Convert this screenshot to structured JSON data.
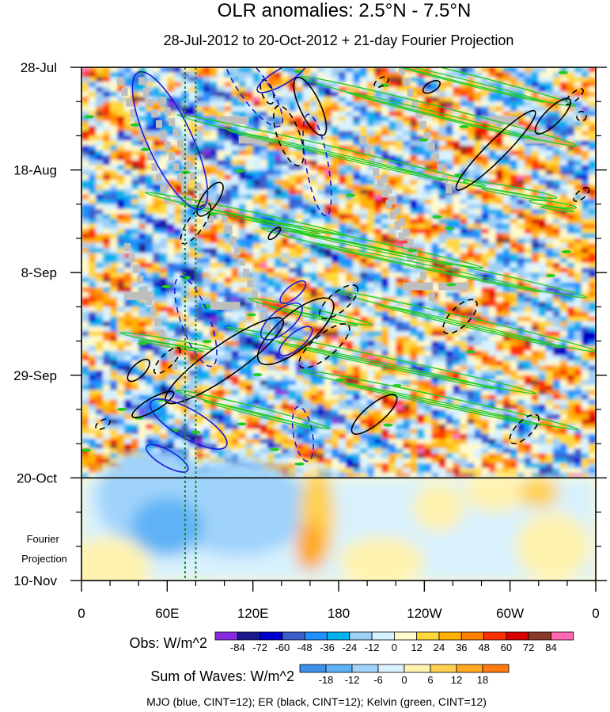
{
  "chart_data": {
    "type": "heatmap",
    "title": "OLR anomalies: 2.5°N - 7.5°N",
    "subtitle": "28-Jul-2012 to 20-Oct-2012 + 21-day Fourier Projection",
    "x_tick_labels": [
      "0",
      "60E",
      "120E",
      "180",
      "120W",
      "60W",
      "0"
    ],
    "x_range_deg_east": [
      0,
      360
    ],
    "y_tick_labels": [
      "28-Jul",
      "18-Aug",
      "8-Sep",
      "29-Sep",
      "20-Oct",
      "10-Nov"
    ],
    "y_range": [
      "2012-07-28",
      "2012-11-10"
    ],
    "y_axis_direction": "time increases downward",
    "observation_end": "2012-10-20",
    "projection_label": "Fourier\nProjection",
    "vertical_reference_lines_deg_east": [
      72.5,
      80
    ],
    "obs_colorbar": {
      "label": "Obs: W/m^2",
      "levels": [
        -84,
        -72,
        -60,
        -48,
        -36,
        -24,
        -12,
        0,
        12,
        24,
        36,
        48,
        60,
        72,
        84
      ],
      "colors": [
        "#8a2be2",
        "#1a1a8c",
        "#0000cd",
        "#3a5fcd",
        "#1e90ff",
        "#00b2ee",
        "#9fd0f5",
        "#d8f3ff",
        "#fffacd",
        "#ffd83b",
        "#ffb000",
        "#ff7f00",
        "#ff3000",
        "#d60000",
        "#8b3a2a",
        "#ff69b4"
      ]
    },
    "waves_colorbar": {
      "label": "Sum of Waves: W/m^2",
      "levels": [
        -18,
        -12,
        -6,
        0,
        6,
        12,
        18
      ],
      "colors": [
        "#3d8fe8",
        "#5fb2f5",
        "#9fd3fb",
        "#d8f1fd",
        "#fff3b0",
        "#ffd050",
        "#ffa820",
        "#ff7a10"
      ]
    },
    "contours_legend": "MJO (blue, CINT=12); ER (black, CINT=12); Kelvin (green, CINT=12)",
    "colors": {
      "mjo": "#1a1ad8",
      "er": "#000000",
      "kelvin": "#22cc22",
      "missing": "#bebebe"
    }
  }
}
